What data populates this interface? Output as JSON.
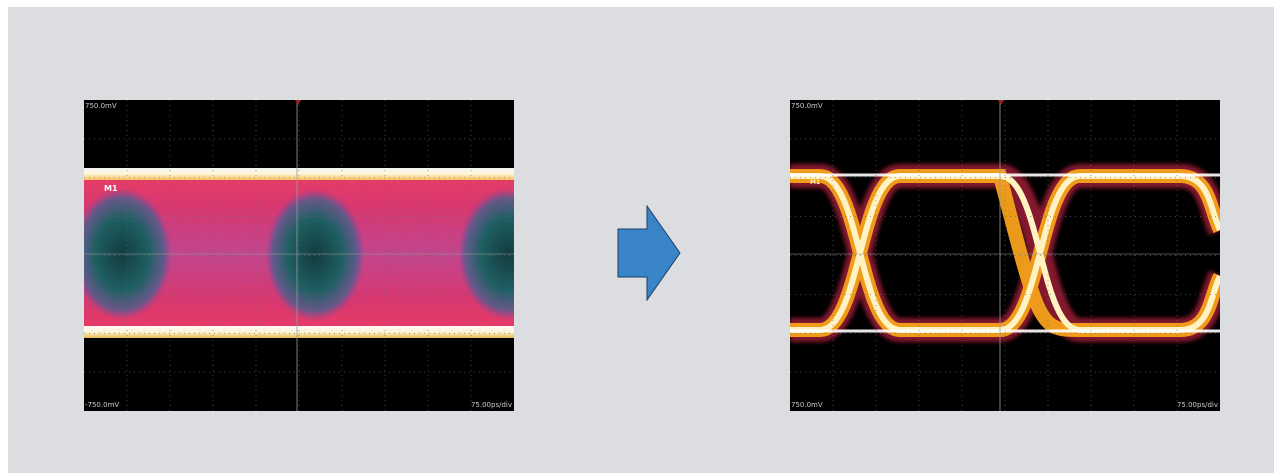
{
  "left_scope": {
    "top_voltage_label": "750.0mV",
    "bottom_voltage_label": "-750.0mV",
    "timebase_label": "75.00ps/div",
    "marker_label": "M1",
    "colors": {
      "background": "#000000",
      "band": "#fff6d8",
      "persistence": "#e0335f",
      "eye": "#1f5f62"
    }
  },
  "right_scope": {
    "top_voltage_label": "750.0mV",
    "bottom_voltage_label": "750.0mV",
    "timebase_label": "75.00ps/div",
    "marker_label": "M1",
    "colors": {
      "background": "#000000",
      "trace_core": "#fff3c4",
      "trace_mid": "#f7a21b",
      "trace_outer": "#b0213c"
    }
  },
  "arrow": {
    "icon": "right-arrow-icon",
    "color": "#3a84c8"
  }
}
